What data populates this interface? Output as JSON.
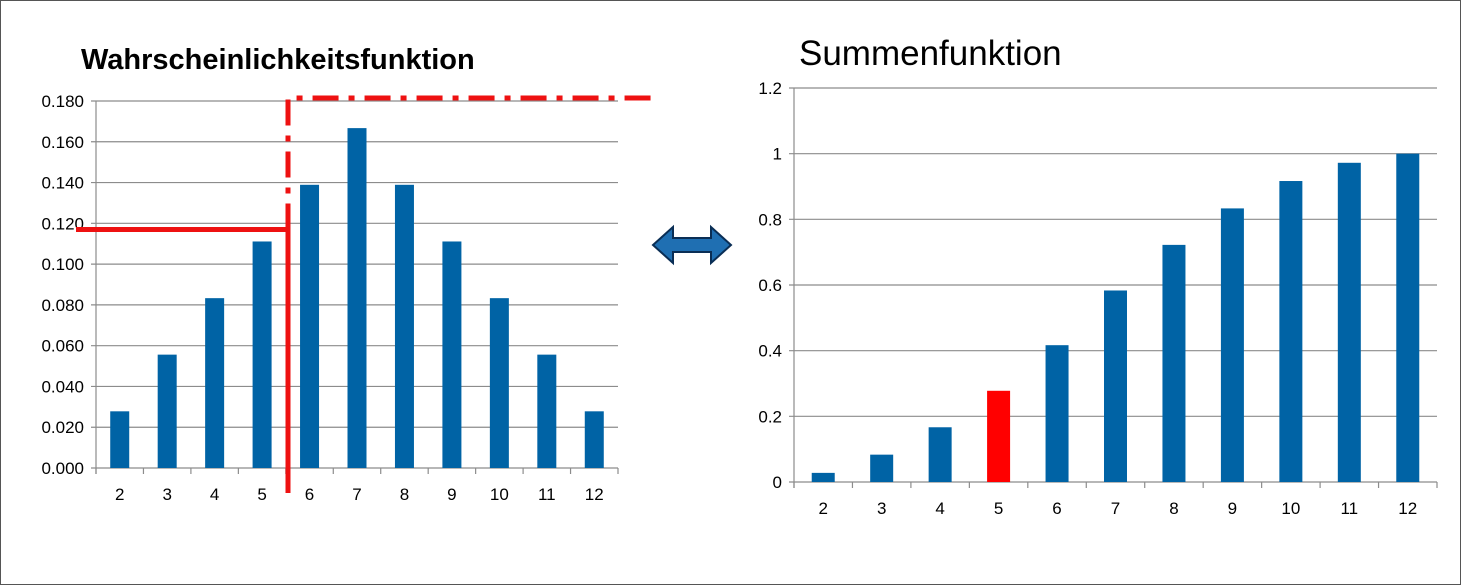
{
  "colors": {
    "bar": "#0063A5",
    "highlight": "#FF0000",
    "grid": "#8C8C8C",
    "axis": "#8C8C8C",
    "marker_line": "#EE1111",
    "arrow_fill": "#1F6FB2",
    "arrow_stroke": "#0A2E55"
  },
  "arrow": {
    "icon": "double-headed-arrow-icon"
  },
  "chart_data": [
    {
      "type": "bar",
      "title": "Wahrscheinlichkeitsfunktion",
      "xlabel": "",
      "ylabel": "",
      "categories": [
        "2",
        "3",
        "4",
        "5",
        "6",
        "7",
        "8",
        "9",
        "10",
        "11",
        "12"
      ],
      "values": [
        0.0278,
        0.0556,
        0.0833,
        0.1111,
        0.1389,
        0.1667,
        0.1389,
        0.1111,
        0.0833,
        0.0556,
        0.0278
      ],
      "ylim": [
        0,
        0.18
      ],
      "yticks": [
        0,
        0.02,
        0.04,
        0.06,
        0.08,
        0.1,
        0.12,
        0.14,
        0.16,
        0.18
      ],
      "ytick_labels": [
        "0.000",
        "0.020",
        "0.040",
        "0.060",
        "0.080",
        "0.100",
        "0.120",
        "0.140",
        "0.160",
        "0.180"
      ],
      "grid": true,
      "legend": "none",
      "annotations": [
        {
          "kind": "solid-line",
          "description": "red step line at y=0.117 from the axis to between x=5 and x=6",
          "y": 0.117
        },
        {
          "kind": "dash-dot-line",
          "description": "red dash-dot step line rising between x=5 and x=6 up to y=0.18"
        }
      ]
    },
    {
      "type": "bar",
      "title": "Summenfunktion",
      "xlabel": "",
      "ylabel": "",
      "categories": [
        "2",
        "3",
        "4",
        "5",
        "6",
        "7",
        "8",
        "9",
        "10",
        "11",
        "12"
      ],
      "values": [
        0.0278,
        0.0833,
        0.1667,
        0.2778,
        0.4167,
        0.5833,
        0.7222,
        0.8333,
        0.9167,
        0.9722,
        1.0
      ],
      "highlight_index": 3,
      "ylim": [
        0,
        1.2
      ],
      "yticks": [
        0,
        0.2,
        0.4,
        0.6,
        0.8,
        1,
        1.2
      ],
      "ytick_labels": [
        "0",
        "0.2",
        "0.4",
        "0.6",
        "0.8",
        "1",
        "1.2"
      ],
      "grid": true,
      "legend": "none"
    }
  ]
}
